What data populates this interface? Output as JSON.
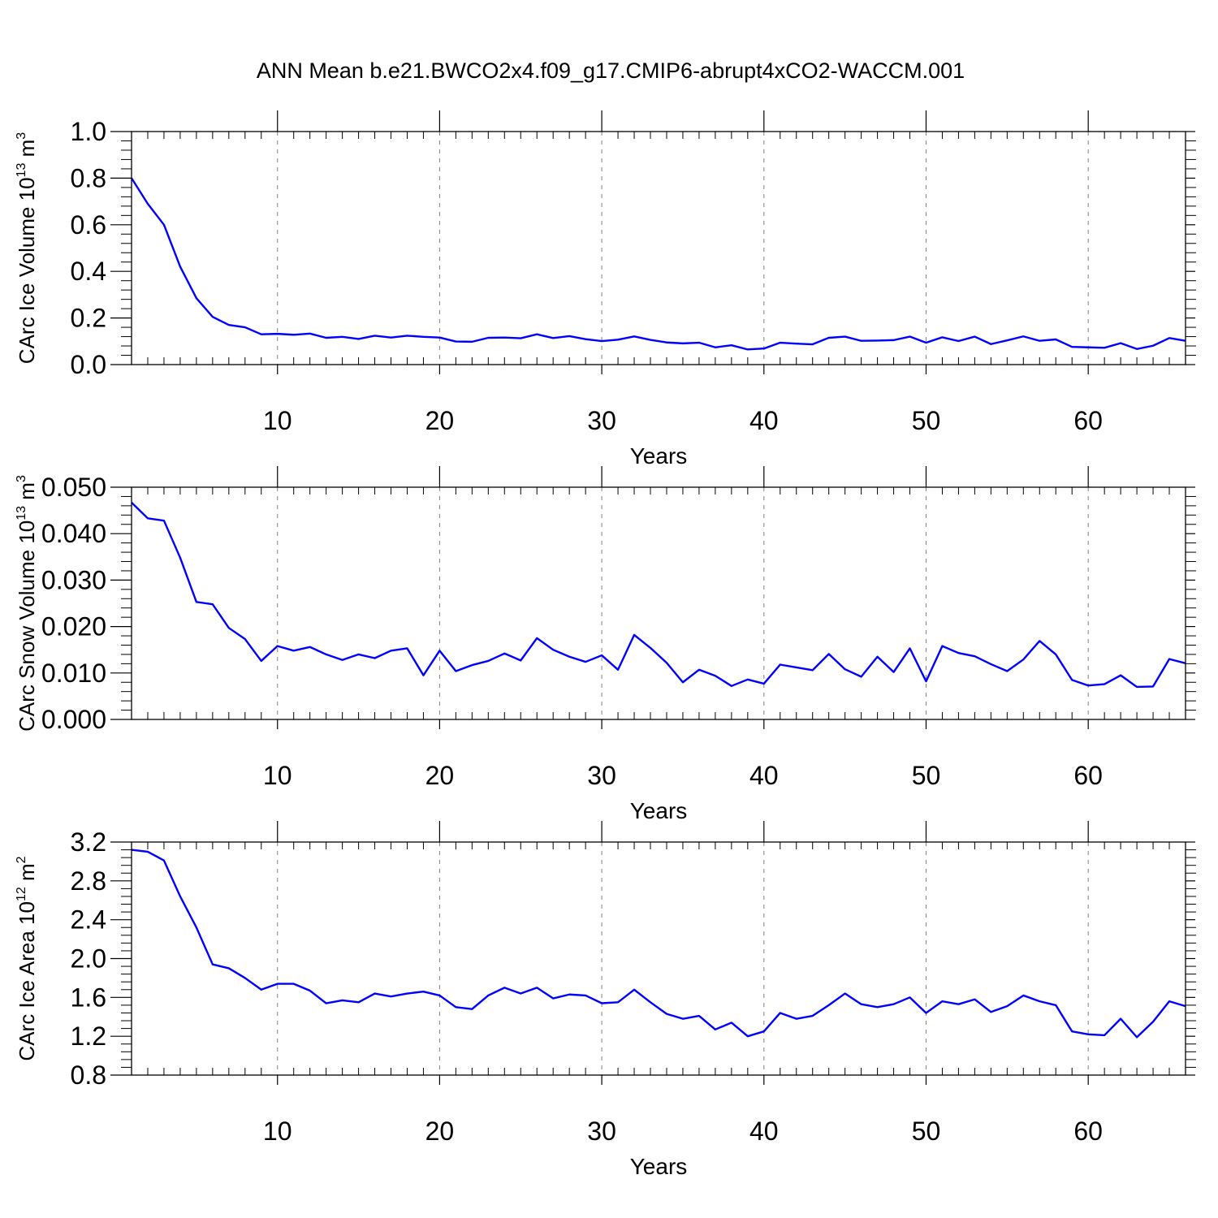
{
  "figure": {
    "title": "ANN Mean b.e21.BWCO2x4.f09_g17.CMIP6-abrupt4xCO2-WACCM.001"
  },
  "style": {
    "line_color": "#0000ff",
    "grid_color": "#808080"
  },
  "chart_data": [
    {
      "type": "line",
      "xlabel": "Years",
      "ylabel": {
        "text": "CArc Ice Volume 10",
        "exp": "13",
        "unit": " m",
        "unit_exp": "3"
      },
      "xlim": [
        1,
        66
      ],
      "ylim": [
        0.0,
        1.0
      ],
      "xticks": [
        10,
        20,
        30,
        40,
        50,
        60
      ],
      "yticks": [
        0.0,
        0.2,
        0.4,
        0.6,
        0.8,
        1.0
      ],
      "ytick_labels": [
        "0.0",
        "0.2",
        "0.4",
        "0.6",
        "0.8",
        "1.0"
      ],
      "grid": "x-dashed",
      "x": [
        1,
        2,
        3,
        4,
        5,
        6,
        7,
        8,
        9,
        10,
        11,
        12,
        13,
        14,
        15,
        16,
        17,
        18,
        19,
        20,
        21,
        22,
        23,
        24,
        25,
        26,
        27,
        28,
        29,
        30,
        31,
        32,
        33,
        34,
        35,
        36,
        37,
        38,
        39,
        40,
        41,
        42,
        43,
        44,
        45,
        46,
        47,
        48,
        49,
        50,
        51,
        52,
        53,
        54,
        55,
        56,
        57,
        58,
        59,
        60,
        61,
        62,
        63,
        64,
        65,
        66
      ],
      "y": [
        0.8,
        0.69,
        0.6,
        0.42,
        0.285,
        0.205,
        0.17,
        0.16,
        0.13,
        0.132,
        0.128,
        0.133,
        0.115,
        0.119,
        0.11,
        0.124,
        0.116,
        0.124,
        0.119,
        0.116,
        0.099,
        0.098,
        0.115,
        0.116,
        0.113,
        0.13,
        0.114,
        0.122,
        0.109,
        0.101,
        0.107,
        0.121,
        0.106,
        0.095,
        0.091,
        0.094,
        0.074,
        0.083,
        0.065,
        0.069,
        0.094,
        0.09,
        0.087,
        0.115,
        0.12,
        0.102,
        0.103,
        0.105,
        0.12,
        0.094,
        0.117,
        0.101,
        0.12,
        0.088,
        0.104,
        0.121,
        0.102,
        0.108,
        0.076,
        0.074,
        0.072,
        0.092,
        0.067,
        0.081,
        0.114,
        0.102
      ]
    },
    {
      "type": "line",
      "xlabel": "Years",
      "ylabel": {
        "text": "CArc Snow Volume 10",
        "exp": "13",
        "unit": " m",
        "unit_exp": "3"
      },
      "xlim": [
        1,
        66
      ],
      "ylim": [
        0.0,
        0.05
      ],
      "xticks": [
        10,
        20,
        30,
        40,
        50,
        60
      ],
      "yticks": [
        0.0,
        0.01,
        0.02,
        0.03,
        0.04,
        0.05
      ],
      "ytick_labels": [
        "0.000",
        "0.010",
        "0.020",
        "0.030",
        "0.040",
        "0.050"
      ],
      "grid": "x-dashed",
      "x": [
        1,
        2,
        3,
        4,
        5,
        6,
        7,
        8,
        9,
        10,
        11,
        12,
        13,
        14,
        15,
        16,
        17,
        18,
        19,
        20,
        21,
        22,
        23,
        24,
        25,
        26,
        27,
        28,
        29,
        30,
        31,
        32,
        33,
        34,
        35,
        36,
        37,
        38,
        39,
        40,
        41,
        42,
        43,
        44,
        45,
        46,
        47,
        48,
        49,
        50,
        51,
        52,
        53,
        54,
        55,
        56,
        57,
        58,
        59,
        60,
        61,
        62,
        63,
        64,
        65,
        66
      ],
      "y": [
        0.0467,
        0.0433,
        0.0428,
        0.0348,
        0.0253,
        0.0248,
        0.0197,
        0.0173,
        0.0126,
        0.0158,
        0.0148,
        0.0156,
        0.014,
        0.0128,
        0.014,
        0.0132,
        0.0148,
        0.0153,
        0.0095,
        0.0148,
        0.0104,
        0.0117,
        0.0126,
        0.0142,
        0.0127,
        0.0175,
        0.015,
        0.0135,
        0.0124,
        0.0138,
        0.0107,
        0.0182,
        0.0154,
        0.0122,
        0.008,
        0.0107,
        0.0094,
        0.0072,
        0.0086,
        0.0077,
        0.0118,
        0.0112,
        0.0106,
        0.0141,
        0.0108,
        0.0092,
        0.0135,
        0.0102,
        0.0153,
        0.0082,
        0.0158,
        0.0143,
        0.0136,
        0.0119,
        0.0104,
        0.0129,
        0.0169,
        0.014,
        0.0085,
        0.0073,
        0.0076,
        0.0095,
        0.007,
        0.0071,
        0.013,
        0.0121
      ]
    },
    {
      "type": "line",
      "xlabel": "Years",
      "ylabel": {
        "text": "CArc Ice Area 10",
        "exp": "12",
        "unit": " m",
        "unit_exp": "2"
      },
      "xlim": [
        1,
        66
      ],
      "ylim": [
        0.8,
        3.2
      ],
      "xticks": [
        10,
        20,
        30,
        40,
        50,
        60
      ],
      "yticks": [
        0.8,
        1.2,
        1.6,
        2.0,
        2.4,
        2.8,
        3.2
      ],
      "ytick_labels": [
        "0.8",
        "1.2",
        "1.6",
        "2.0",
        "2.4",
        "2.8",
        "3.2"
      ],
      "grid": "x-dashed",
      "x": [
        1,
        2,
        3,
        4,
        5,
        6,
        7,
        8,
        9,
        10,
        11,
        12,
        13,
        14,
        15,
        16,
        17,
        18,
        19,
        20,
        21,
        22,
        23,
        24,
        25,
        26,
        27,
        28,
        29,
        30,
        31,
        32,
        33,
        34,
        35,
        36,
        37,
        38,
        39,
        40,
        41,
        42,
        43,
        44,
        45,
        46,
        47,
        48,
        49,
        50,
        51,
        52,
        53,
        54,
        55,
        56,
        57,
        58,
        59,
        60,
        61,
        62,
        63,
        64,
        65,
        66
      ],
      "y": [
        3.12,
        3.1,
        3.01,
        2.64,
        2.32,
        1.94,
        1.9,
        1.8,
        1.68,
        1.74,
        1.74,
        1.67,
        1.54,
        1.57,
        1.55,
        1.64,
        1.61,
        1.64,
        1.66,
        1.62,
        1.5,
        1.48,
        1.62,
        1.7,
        1.64,
        1.7,
        1.59,
        1.63,
        1.62,
        1.54,
        1.55,
        1.68,
        1.55,
        1.43,
        1.38,
        1.41,
        1.27,
        1.34,
        1.2,
        1.25,
        1.44,
        1.38,
        1.41,
        1.52,
        1.64,
        1.53,
        1.5,
        1.53,
        1.6,
        1.44,
        1.56,
        1.53,
        1.58,
        1.45,
        1.51,
        1.62,
        1.56,
        1.52,
        1.25,
        1.22,
        1.21,
        1.38,
        1.19,
        1.35,
        1.56,
        1.51
      ]
    }
  ]
}
